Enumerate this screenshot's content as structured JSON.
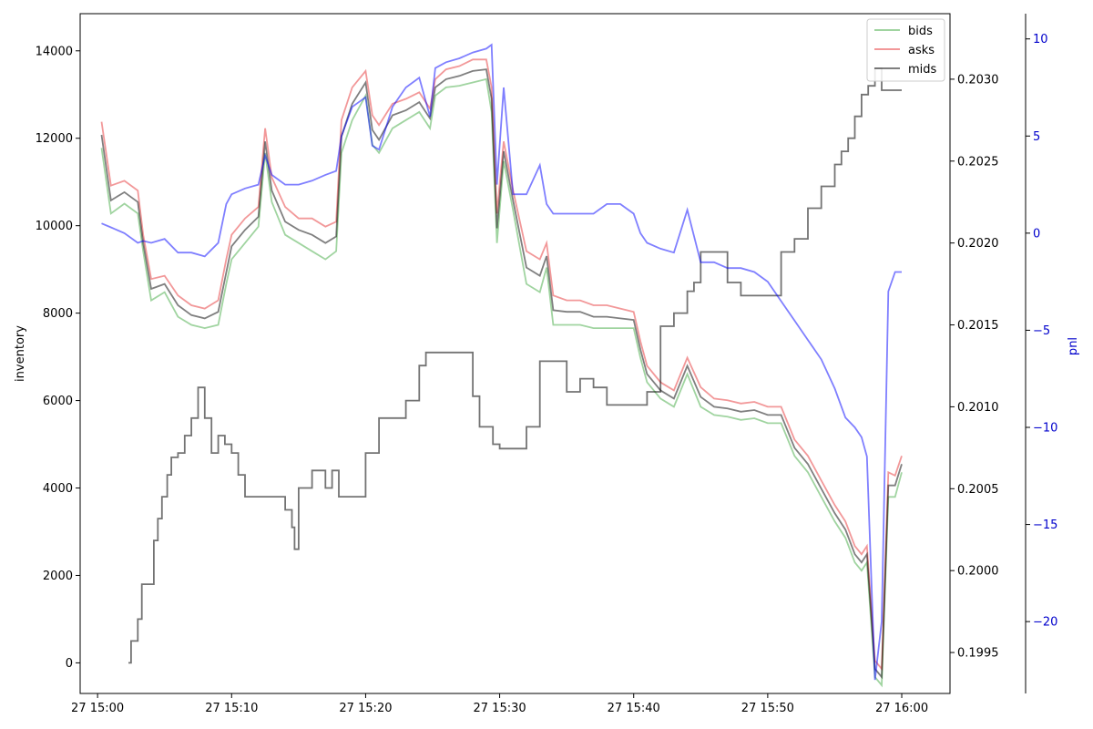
{
  "chart_data": {
    "type": "line",
    "title": "",
    "x_ticks": [
      "27 15:00",
      "27 15:10",
      "27 15:20",
      "27 15:30",
      "27 15:40",
      "27 15:50",
      "27 16:00"
    ],
    "x_range_minutes": [
      -1.3,
      63.6
    ],
    "axes": {
      "left": {
        "ylabel": "inventory",
        "ylim": [
          -700,
          14850
        ],
        "ticks": [
          0,
          2000,
          4000,
          6000,
          8000,
          10000,
          12000,
          14000
        ]
      },
      "right": {
        "ylabel": "",
        "ylim": [
          0.19925,
          0.2034
        ],
        "ticks": [
          0.1995,
          0.2,
          0.2005,
          0.201,
          0.2015,
          0.202,
          0.2025,
          0.203
        ],
        "tick_labels": [
          "0.1995",
          "0.2000",
          "0.2005",
          "0.2010",
          "0.2015",
          "0.2020",
          "0.2025",
          "0.2030"
        ]
      },
      "pnl": {
        "ylabel": "pnl",
        "ylim": [
          -23.7,
          11.3
        ],
        "ticks": [
          -20,
          -15,
          -10,
          -5,
          0,
          5,
          10
        ],
        "tick_labels": [
          "−20",
          "−15",
          "−10",
          "−5",
          "0",
          "5",
          "10"
        ],
        "color": "#0000cc"
      }
    },
    "legend": {
      "position": "top-right",
      "entries": [
        "bids",
        "asks",
        "mids"
      ]
    },
    "series": [
      {
        "name": "bids",
        "axis": "right",
        "color": "#2ca02c",
        "opacity": 0.45,
        "x": [
          0.3,
          1.0,
          2.0,
          3.0,
          3.4,
          4.0,
          5.0,
          6.0,
          7.0,
          8.0,
          9.0,
          9.6,
          10.0,
          11.0,
          12.0,
          12.5,
          13.0,
          14.0,
          15.0,
          16.0,
          17.0,
          17.8,
          18.2,
          19.0,
          20.0,
          20.5,
          21.0,
          22.0,
          23.0,
          24.0,
          24.8,
          25.2,
          26.0,
          27.0,
          28.0,
          29.0,
          29.4,
          29.8,
          30.3,
          31.0,
          32.0,
          33.0,
          33.5,
          34.0,
          35.0,
          36.0,
          37.0,
          38.0,
          39.0,
          40.0,
          40.5,
          41.0,
          42.0,
          43.0,
          44.0,
          45.0,
          46.0,
          47.0,
          48.0,
          49.0,
          50.0,
          51.0,
          52.0,
          53.0,
          54.0,
          55.0,
          55.8,
          56.5,
          57.0,
          57.4,
          58.0,
          58.5,
          59.0,
          59.5,
          60.0
        ],
        "y": [
          0.20258,
          0.20218,
          0.20224,
          0.20218,
          0.20195,
          0.20165,
          0.2017,
          0.20155,
          0.2015,
          0.20148,
          0.2015,
          0.20175,
          0.2019,
          0.202,
          0.2021,
          0.20255,
          0.20225,
          0.20205,
          0.202,
          0.20195,
          0.2019,
          0.20195,
          0.20255,
          0.20275,
          0.2029,
          0.2026,
          0.20255,
          0.2027,
          0.20275,
          0.2028,
          0.2027,
          0.2029,
          0.20295,
          0.20296,
          0.20298,
          0.203,
          0.2028,
          0.202,
          0.2025,
          0.2022,
          0.20175,
          0.2017,
          0.20185,
          0.2015,
          0.2015,
          0.2015,
          0.20148,
          0.20148,
          0.20148,
          0.20148,
          0.2013,
          0.20115,
          0.20105,
          0.201,
          0.2012,
          0.201,
          0.20095,
          0.20094,
          0.20092,
          0.20093,
          0.2009,
          0.2009,
          0.2007,
          0.2006,
          0.20045,
          0.2003,
          0.2002,
          0.20005,
          0.2,
          0.20005,
          0.19935,
          0.1993,
          0.20045,
          0.20045,
          0.2006
        ]
      },
      {
        "name": "asks",
        "axis": "right",
        "color": "#e31a1c",
        "opacity": 0.45,
        "x": [
          0.3,
          1.0,
          2.0,
          3.0,
          3.4,
          4.0,
          5.0,
          6.0,
          7.0,
          8.0,
          9.0,
          9.6,
          10.0,
          11.0,
          12.0,
          12.5,
          13.0,
          14.0,
          15.0,
          16.0,
          17.0,
          17.8,
          18.2,
          19.0,
          20.0,
          20.5,
          21.0,
          22.0,
          23.0,
          24.0,
          24.8,
          25.2,
          26.0,
          27.0,
          28.0,
          29.0,
          29.4,
          29.8,
          30.3,
          31.0,
          32.0,
          33.0,
          33.5,
          34.0,
          35.0,
          36.0,
          37.0,
          38.0,
          39.0,
          40.0,
          40.5,
          41.0,
          42.0,
          43.0,
          44.0,
          45.0,
          46.0,
          47.0,
          48.0,
          49.0,
          50.0,
          51.0,
          52.0,
          53.0,
          54.0,
          55.0,
          55.8,
          56.5,
          57.0,
          57.4,
          58.0,
          58.5,
          59.0,
          59.5,
          60.0
        ],
        "y": [
          0.20274,
          0.20235,
          0.20238,
          0.20232,
          0.20205,
          0.20178,
          0.2018,
          0.20168,
          0.20162,
          0.2016,
          0.20165,
          0.2019,
          0.20205,
          0.20215,
          0.20222,
          0.2027,
          0.2024,
          0.20222,
          0.20215,
          0.20215,
          0.2021,
          0.20213,
          0.20275,
          0.20295,
          0.20305,
          0.20278,
          0.20272,
          0.20285,
          0.20288,
          0.20292,
          0.20282,
          0.203,
          0.20306,
          0.20308,
          0.20312,
          0.20312,
          0.20295,
          0.20218,
          0.20262,
          0.20232,
          0.20195,
          0.2019,
          0.202,
          0.20168,
          0.20165,
          0.20165,
          0.20162,
          0.20162,
          0.2016,
          0.20158,
          0.2014,
          0.20125,
          0.20115,
          0.2011,
          0.2013,
          0.20112,
          0.20105,
          0.20104,
          0.20102,
          0.20103,
          0.201,
          0.201,
          0.2008,
          0.2007,
          0.20055,
          0.2004,
          0.2003,
          0.20015,
          0.2001,
          0.20015,
          0.19945,
          0.1994,
          0.2006,
          0.20058,
          0.2007
        ]
      },
      {
        "name": "mids",
        "axis": "right",
        "color": "#000000",
        "opacity": 0.5,
        "x": [
          0.3,
          1.0,
          2.0,
          3.0,
          3.4,
          4.0,
          5.0,
          6.0,
          7.0,
          8.0,
          9.0,
          9.6,
          10.0,
          11.0,
          12.0,
          12.5,
          13.0,
          14.0,
          15.0,
          16.0,
          17.0,
          17.8,
          18.2,
          19.0,
          20.0,
          20.5,
          21.0,
          22.0,
          23.0,
          24.0,
          24.8,
          25.2,
          26.0,
          27.0,
          28.0,
          29.0,
          29.4,
          29.8,
          30.3,
          31.0,
          32.0,
          33.0,
          33.5,
          34.0,
          35.0,
          36.0,
          37.0,
          38.0,
          39.0,
          40.0,
          40.5,
          41.0,
          42.0,
          43.0,
          44.0,
          45.0,
          46.0,
          47.0,
          48.0,
          49.0,
          50.0,
          51.0,
          52.0,
          53.0,
          54.0,
          55.0,
          55.8,
          56.5,
          57.0,
          57.4,
          58.0,
          58.5,
          59.0,
          59.5,
          60.0
        ],
        "y": [
          0.20266,
          0.20226,
          0.20231,
          0.20225,
          0.202,
          0.20172,
          0.20175,
          0.20162,
          0.20156,
          0.20154,
          0.20158,
          0.20182,
          0.20198,
          0.20208,
          0.20216,
          0.20262,
          0.20232,
          0.20213,
          0.20208,
          0.20205,
          0.202,
          0.20204,
          0.20265,
          0.20285,
          0.20298,
          0.20269,
          0.20263,
          0.20278,
          0.20281,
          0.20286,
          0.20276,
          0.20295,
          0.203,
          0.20302,
          0.20305,
          0.20306,
          0.20288,
          0.20209,
          0.20256,
          0.20226,
          0.20185,
          0.2018,
          0.20192,
          0.20159,
          0.20158,
          0.20158,
          0.20155,
          0.20155,
          0.20154,
          0.20153,
          0.20135,
          0.2012,
          0.2011,
          0.20105,
          0.20125,
          0.20106,
          0.201,
          0.20099,
          0.20097,
          0.20098,
          0.20095,
          0.20095,
          0.20075,
          0.20065,
          0.2005,
          0.20035,
          0.20025,
          0.2001,
          0.20005,
          0.2001,
          0.1994,
          0.19935,
          0.20052,
          0.20052,
          0.20065
        ]
      },
      {
        "name": "inventory",
        "axis": "left",
        "color": "#000000",
        "opacity": 0.55,
        "step": true,
        "x": [
          2.3,
          2.5,
          3.0,
          3.3,
          4.2,
          4.5,
          4.8,
          5.2,
          5.5,
          6.0,
          6.5,
          7.0,
          7.5,
          8.0,
          8.5,
          9.0,
          9.5,
          10.0,
          10.5,
          11.0,
          11.5,
          12.0,
          12.5,
          14.0,
          14.5,
          14.7,
          15.0,
          15.5,
          16.0,
          16.5,
          17.0,
          17.5,
          18.0,
          18.5,
          20.0,
          21.0,
          22.0,
          23.0,
          24.0,
          24.5,
          25.0,
          26.0,
          27.0,
          28.0,
          28.5,
          29.0,
          29.5,
          30.0,
          31.0,
          32.0,
          33.0,
          34.0,
          35.0,
          36.0,
          37.0,
          38.0,
          39.0,
          40.0,
          41.0,
          42.0,
          43.0,
          44.0,
          44.5,
          45.0,
          46.0,
          47.0,
          48.0,
          49.0,
          50.0,
          51.0,
          52.0,
          53.0,
          54.0,
          55.0,
          55.5,
          56.0,
          56.5,
          57.0,
          57.5,
          58.0,
          58.5,
          59.0,
          59.5,
          60.0
        ],
        "y": [
          0,
          500,
          1000,
          1800,
          2800,
          3300,
          3800,
          4300,
          4700,
          4800,
          5200,
          5600,
          6300,
          5600,
          4800,
          5200,
          5000,
          4800,
          4300,
          3800,
          3800,
          3800,
          3800,
          3500,
          3100,
          2600,
          4000,
          4000,
          4400,
          4400,
          4000,
          4400,
          3800,
          3800,
          4800,
          5600,
          5600,
          6000,
          6800,
          7100,
          7100,
          7100,
          7100,
          6100,
          5400,
          5400,
          5000,
          4900,
          4900,
          5400,
          6900,
          6900,
          6200,
          6500,
          6300,
          5900,
          5900,
          5900,
          6200,
          7700,
          8000,
          8500,
          8700,
          9400,
          9400,
          8700,
          8400,
          8400,
          8400,
          9400,
          9700,
          10400,
          10900,
          11400,
          11700,
          12000,
          12500,
          13000,
          13200,
          13600,
          13100,
          13100,
          13100,
          13100
        ]
      },
      {
        "name": "pnl",
        "axis": "pnl",
        "color": "#0000ff",
        "opacity": 0.5,
        "x": [
          0.3,
          1.0,
          2.0,
          3.0,
          3.4,
          4.0,
          5.0,
          6.0,
          7.0,
          8.0,
          9.0,
          9.6,
          10.0,
          11.0,
          12.0,
          12.5,
          13.0,
          14.0,
          15.0,
          16.0,
          17.0,
          17.8,
          18.2,
          19.0,
          20.0,
          20.5,
          21.0,
          22.0,
          23.0,
          24.0,
          24.8,
          25.2,
          26.0,
          27.0,
          28.0,
          29.0,
          29.4,
          29.8,
          30.3,
          31.0,
          32.0,
          33.0,
          33.5,
          34.0,
          35.0,
          36.0,
          37.0,
          38.0,
          39.0,
          40.0,
          40.5,
          41.0,
          42.0,
          43.0,
          44.0,
          45.0,
          46.0,
          47.0,
          48.0,
          49.0,
          50.0,
          51.0,
          52.0,
          53.0,
          54.0,
          55.0,
          55.8,
          56.5,
          57.0,
          57.4,
          58.0,
          58.5,
          59.0,
          59.5,
          60.0
        ],
        "y": [
          0.5,
          0.3,
          0.0,
          -0.5,
          -0.4,
          -0.5,
          -0.3,
          -1.0,
          -1.0,
          -1.2,
          -0.5,
          1.5,
          2.0,
          2.3,
          2.5,
          4.0,
          3.0,
          2.5,
          2.5,
          2.7,
          3.0,
          3.2,
          5.0,
          6.5,
          7.0,
          4.5,
          4.3,
          6.5,
          7.5,
          8.0,
          6.0,
          8.5,
          8.8,
          9.0,
          9.3,
          9.5,
          9.7,
          2.5,
          7.5,
          2.0,
          2.0,
          3.5,
          1.5,
          1.0,
          1.0,
          1.0,
          1.0,
          1.5,
          1.5,
          1.0,
          0.0,
          -0.5,
          -0.8,
          -1.0,
          1.2,
          -1.5,
          -1.5,
          -1.8,
          -1.8,
          -2.0,
          -2.5,
          -3.5,
          -4.5,
          -5.5,
          -6.5,
          -8.0,
          -9.5,
          -10.0,
          -10.5,
          -11.5,
          -23.0,
          -20.0,
          -3.0,
          -2.0,
          -2.0
        ]
      }
    ]
  }
}
